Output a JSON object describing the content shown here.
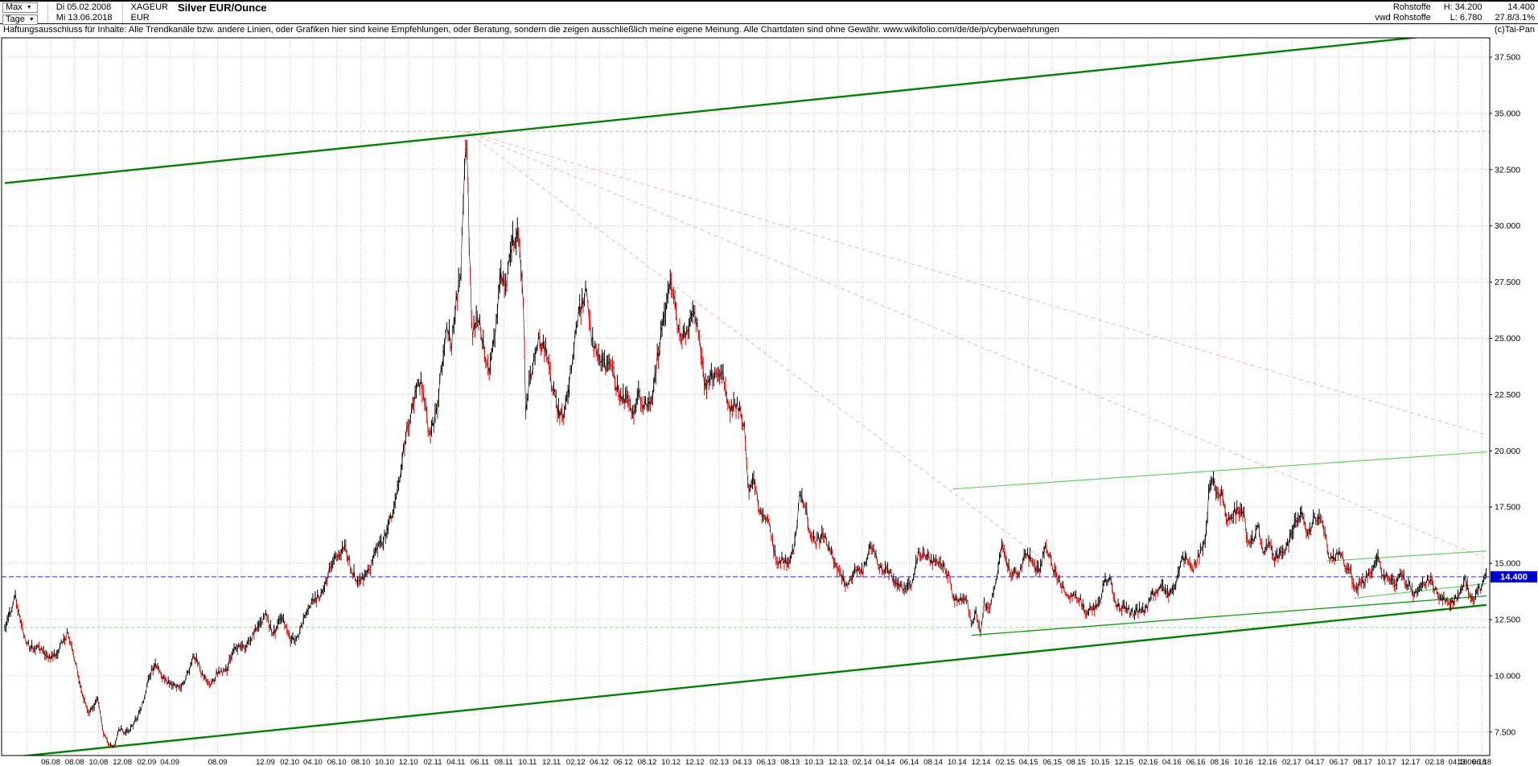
{
  "header": {
    "range_label": "Max",
    "range_arrow": "▼",
    "period_label": "Tage",
    "period_arrow": "▼",
    "start_date": "Di 05.02.2008",
    "end_date": "Mi 13.06.2018",
    "symbol": "XAGEUR",
    "currency": "EUR",
    "title": "Silver EUR/Ounce",
    "category": "Rohstoffe",
    "source": "vwd Rohstoffe",
    "high": "H: 34.200",
    "low": "L: 6.780",
    "last": "14.400",
    "change": "27.8/3.1%",
    "copyright": "(c)Tai-Pan"
  },
  "disclaimer": "Haftungsausschluss für Inhalte: Alle Trendkanäle bzw. andere Linien, oder Grafiken hier sind keine Empfehlungen, oder Beratung, sondern die zeigen ausschließlich meine eigene Meinung. Alle Chartdaten sind ohne Gewähr.  www.wikifolio.com/de/de/p/cyberwaehrungen",
  "chart_data": {
    "type": "candlestick",
    "title": "Silver EUR/Ounce",
    "instrument": "XAGEUR",
    "currency": "EUR",
    "x_start": "2008-02-05",
    "x_end": "2018-06-13",
    "high": 34.2,
    "low": 6.78,
    "last": 14.4,
    "last_label": "14.400",
    "ylim": [
      6.45,
      38.3
    ],
    "grid": true,
    "y_ticks": [
      [
        37.5,
        "37.500"
      ],
      [
        35,
        "35.000"
      ],
      [
        32.5,
        "32.500"
      ],
      [
        30,
        "30.000"
      ],
      [
        27.5,
        "27.500"
      ],
      [
        25,
        "25.000"
      ],
      [
        22.5,
        "22.500"
      ],
      [
        20,
        "20.000"
      ],
      [
        17.5,
        "17.500"
      ],
      [
        15,
        "15.000"
      ],
      [
        12.5,
        "12.500"
      ],
      [
        10,
        "10.000"
      ],
      [
        7.5,
        "7.500"
      ]
    ],
    "x_ticks": [
      "06.08",
      "08.08",
      "10.08",
      "12.08",
      "02.09",
      "04.09",
      "08.09",
      "12.09",
      "02.10",
      "04.10",
      "06.10",
      "08.10",
      "10.10",
      "12.10",
      "02.11",
      "04.11",
      "06.11",
      "08.11",
      "10.11",
      "12.11",
      "02.12",
      "04.12",
      "06.12",
      "08.12",
      "10.12",
      "12.12",
      "02.13",
      "04.13",
      "06.13",
      "08.13",
      "10.13",
      "12.13",
      "02.14",
      "04.14",
      "06.14",
      "08.14",
      "10.14",
      "12.14",
      "02.15",
      "04.15",
      "06.15",
      "08.15",
      "10.15",
      "12.15",
      "02.16",
      "04.16",
      "06.16",
      "08.16",
      "10.16",
      "12.16",
      "02.17",
      "04.17",
      "06.17",
      "08.17",
      "10.17",
      "12.17",
      "02.18",
      "04.18",
      "06.18",
      "13.06.18"
    ],
    "ref_lines": [
      {
        "name": "high-reference-line",
        "value": 34.2,
        "color": "#ff9c9c",
        "dash": "4 3"
      },
      {
        "name": "support-reference-line",
        "value": 12.15,
        "color": "#8ae08a",
        "dash": "4 3"
      },
      {
        "name": "last-price-line",
        "value": 14.4,
        "color": "#2a2ad0",
        "dash": "6 3"
      }
    ],
    "trend_lines": [
      {
        "name": "upper-channel-line",
        "from": [
          "2008-02-05",
          31.9
        ],
        "to": [
          "2018-06-13",
          38.7
        ],
        "color": "#008000",
        "width": 2.4
      },
      {
        "name": "lower-channel-line",
        "from": [
          "2008-02-05",
          6.35
        ],
        "to": [
          "2018-06-13",
          13.15
        ],
        "color": "#008000",
        "width": 2.4
      },
      {
        "name": "support-line-2014",
        "from": [
          "2014-11-07",
          11.8
        ],
        "to": [
          "2018-06-13",
          13.55
        ],
        "color": "#119911",
        "width": 1.3
      },
      {
        "name": "mid-resistance-line",
        "from": [
          "2014-09-20",
          18.3
        ],
        "to": [
          "2018-06-13",
          19.95
        ],
        "color": "#66cc66",
        "width": 1.2
      },
      {
        "name": "recent-upper-line",
        "from": [
          "2017-05-01",
          15.1
        ],
        "to": [
          "2018-06-13",
          15.55
        ],
        "color": "#66cc66",
        "width": 1.2
      },
      {
        "name": "recent-lower-line",
        "from": [
          "2017-07-10",
          13.45
        ],
        "to": [
          "2018-06-13",
          14.1
        ],
        "color": "#66cc66",
        "width": 1.2
      }
    ],
    "fan_lines": [
      {
        "name": "fan-line-1",
        "from": [
          "2011-04-28",
          34.2
        ],
        "to": [
          "2018-06-13",
          20.7
        ],
        "color": "#ffb0b0",
        "dash": "5 4"
      },
      {
        "name": "fan-line-2",
        "from": [
          "2011-04-28",
          34.2
        ],
        "to": [
          "2018-06-13",
          15.2
        ],
        "color": "#ffb0b0",
        "dash": "5 4"
      },
      {
        "name": "fan-line-3",
        "from": [
          "2011-04-28",
          34.2
        ],
        "to": [
          "2015-07-15",
          14.3
        ],
        "color": "#ffb0b0",
        "dash": "5 4"
      }
    ],
    "series_close": [
      [
        "2008-02-05",
        12.1
      ],
      [
        "2008-02-18",
        12.6
      ],
      [
        "2008-03-03",
        13.5
      ],
      [
        "2008-03-17",
        12.4
      ],
      [
        "2008-04-01",
        11.5
      ],
      [
        "2008-04-21",
        11.2
      ],
      [
        "2008-05-12",
        11.0
      ],
      [
        "2008-06-02",
        10.9
      ],
      [
        "2008-06-23",
        11.2
      ],
      [
        "2008-07-14",
        11.8
      ],
      [
        "2008-08-04",
        10.6
      ],
      [
        "2008-08-18",
        9.4
      ],
      [
        "2008-09-08",
        8.3
      ],
      [
        "2008-09-29",
        8.9
      ],
      [
        "2008-10-13",
        7.6
      ],
      [
        "2008-10-27",
        6.95
      ],
      [
        "2008-11-10",
        6.9
      ],
      [
        "2008-11-24",
        7.6
      ],
      [
        "2008-12-08",
        7.4
      ],
      [
        "2008-12-29",
        7.9
      ],
      [
        "2009-01-19",
        8.6
      ],
      [
        "2009-02-09",
        9.9
      ],
      [
        "2009-02-23",
        10.6
      ],
      [
        "2009-03-16",
        10.0
      ],
      [
        "2009-04-06",
        9.5
      ],
      [
        "2009-04-27",
        9.4
      ],
      [
        "2009-05-18",
        10.2
      ],
      [
        "2009-06-01",
        11.0
      ],
      [
        "2009-06-22",
        10.0
      ],
      [
        "2009-07-13",
        9.6
      ],
      [
        "2009-08-03",
        10.3
      ],
      [
        "2009-08-24",
        10.2
      ],
      [
        "2009-09-14",
        11.2
      ],
      [
        "2009-10-05",
        11.3
      ],
      [
        "2009-10-26",
        11.7
      ],
      [
        "2009-11-16",
        12.1
      ],
      [
        "2009-12-01",
        12.8
      ],
      [
        "2009-12-21",
        11.9
      ],
      [
        "2010-01-11",
        12.5
      ],
      [
        "2010-02-01",
        11.6
      ],
      [
        "2010-02-22",
        11.9
      ],
      [
        "2010-03-15",
        12.8
      ],
      [
        "2010-04-05",
        13.2
      ],
      [
        "2010-04-26",
        13.8
      ],
      [
        "2010-05-17",
        15.0
      ],
      [
        "2010-06-07",
        15.3
      ],
      [
        "2010-06-21",
        15.7
      ],
      [
        "2010-07-12",
        14.7
      ],
      [
        "2010-08-02",
        14.2
      ],
      [
        "2010-08-23",
        14.6
      ],
      [
        "2010-09-13",
        15.9
      ],
      [
        "2010-10-04",
        16.3
      ],
      [
        "2010-10-25",
        17.2
      ],
      [
        "2010-11-08",
        18.8
      ],
      [
        "2010-11-29",
        21.2
      ],
      [
        "2010-12-20",
        22.7
      ],
      [
        "2011-01-03",
        22.9
      ],
      [
        "2011-01-24",
        20.6
      ],
      [
        "2011-02-14",
        22.3
      ],
      [
        "2011-03-07",
        25.3
      ],
      [
        "2011-03-21",
        24.6
      ],
      [
        "2011-04-04",
        26.9
      ],
      [
        "2011-04-14",
        28.3
      ],
      [
        "2011-04-25",
        33.5
      ],
      [
        "2011-04-29",
        33.9
      ],
      [
        "2011-05-04",
        30.0
      ],
      [
        "2011-05-12",
        24.8
      ],
      [
        "2011-05-26",
        25.8
      ],
      [
        "2011-06-13",
        24.5
      ],
      [
        "2011-06-27",
        23.8
      ],
      [
        "2011-07-11",
        25.4
      ],
      [
        "2011-07-25",
        27.6
      ],
      [
        "2011-08-08",
        27.2
      ],
      [
        "2011-08-22",
        29.4
      ],
      [
        "2011-09-06",
        29.9
      ],
      [
        "2011-09-19",
        27.5
      ],
      [
        "2011-09-26",
        21.9
      ],
      [
        "2011-10-10",
        23.3
      ],
      [
        "2011-10-28",
        25.0
      ],
      [
        "2011-11-14",
        24.7
      ],
      [
        "2011-11-28",
        23.4
      ],
      [
        "2011-12-14",
        21.8
      ],
      [
        "2011-12-29",
        21.3
      ],
      [
        "2012-01-16",
        23.2
      ],
      [
        "2012-02-01",
        25.7
      ],
      [
        "2012-02-28",
        26.9
      ],
      [
        "2012-03-14",
        24.7
      ],
      [
        "2012-03-28",
        24.6
      ],
      [
        "2012-04-16",
        23.9
      ],
      [
        "2012-05-07",
        23.2
      ],
      [
        "2012-05-21",
        22.3
      ],
      [
        "2012-06-11",
        22.6
      ],
      [
        "2012-06-25",
        21.8
      ],
      [
        "2012-07-09",
        22.3
      ],
      [
        "2012-07-23",
        21.9
      ],
      [
        "2012-08-13",
        22.4
      ],
      [
        "2012-08-27",
        24.3
      ],
      [
        "2012-09-10",
        25.6
      ],
      [
        "2012-10-01",
        27.2
      ],
      [
        "2012-10-15",
        26.0
      ],
      [
        "2012-10-29",
        25.0
      ],
      [
        "2012-11-12",
        25.6
      ],
      [
        "2012-11-26",
        26.1
      ],
      [
        "2012-12-10",
        25.3
      ],
      [
        "2012-12-27",
        23.0
      ],
      [
        "2013-01-14",
        23.6
      ],
      [
        "2013-01-28",
        23.4
      ],
      [
        "2013-02-11",
        23.0
      ],
      [
        "2013-02-25",
        21.7
      ],
      [
        "2013-03-11",
        22.1
      ],
      [
        "2013-03-25",
        22.1
      ],
      [
        "2013-04-08",
        20.8
      ],
      [
        "2013-04-16",
        17.9
      ],
      [
        "2013-04-29",
        18.6
      ],
      [
        "2013-05-13",
        17.6
      ],
      [
        "2013-05-28",
        17.3
      ],
      [
        "2013-06-10",
        16.6
      ],
      [
        "2013-06-27",
        14.9
      ],
      [
        "2013-07-15",
        15.1
      ],
      [
        "2013-07-29",
        15.0
      ],
      [
        "2013-08-12",
        15.9
      ],
      [
        "2013-08-26",
        18.0
      ],
      [
        "2013-09-09",
        17.3
      ],
      [
        "2013-09-23",
        16.2
      ],
      [
        "2013-10-07",
        16.1
      ],
      [
        "2013-10-28",
        16.4
      ],
      [
        "2013-11-11",
        15.4
      ],
      [
        "2013-11-25",
        14.9
      ],
      [
        "2013-12-09",
        14.5
      ],
      [
        "2013-12-30",
        14.1
      ],
      [
        "2014-01-13",
        14.8
      ],
      [
        "2014-02-03",
        14.5
      ],
      [
        "2014-02-24",
        15.9
      ],
      [
        "2014-03-10",
        15.3
      ],
      [
        "2014-03-24",
        14.5
      ],
      [
        "2014-04-07",
        14.5
      ],
      [
        "2014-04-28",
        14.1
      ],
      [
        "2014-05-12",
        14.1
      ],
      [
        "2014-05-26",
        13.9
      ],
      [
        "2014-06-09",
        14.0
      ],
      [
        "2014-06-23",
        15.3
      ],
      [
        "2014-07-07",
        15.5
      ],
      [
        "2014-07-28",
        15.2
      ],
      [
        "2014-08-11",
        14.9
      ],
      [
        "2014-08-25",
        14.8
      ],
      [
        "2014-09-08",
        14.5
      ],
      [
        "2014-09-22",
        13.6
      ],
      [
        "2014-10-06",
        13.5
      ],
      [
        "2014-10-27",
        13.2
      ],
      [
        "2014-11-07",
        12.1
      ],
      [
        "2014-11-17",
        12.9
      ],
      [
        "2014-12-01",
        11.95
      ],
      [
        "2014-12-08",
        13.4
      ],
      [
        "2014-12-22",
        12.9
      ],
      [
        "2015-01-12",
        14.4
      ],
      [
        "2015-01-22",
        15.7
      ],
      [
        "2015-02-09",
        14.9
      ],
      [
        "2015-02-23",
        14.6
      ],
      [
        "2015-03-09",
        14.5
      ],
      [
        "2015-03-23",
        15.3
      ],
      [
        "2015-04-13",
        15.1
      ],
      [
        "2015-04-27",
        14.8
      ],
      [
        "2015-05-14",
        15.6
      ],
      [
        "2015-05-25",
        15.2
      ],
      [
        "2015-06-08",
        14.4
      ],
      [
        "2015-06-29",
        14.0
      ],
      [
        "2015-07-20",
        13.5
      ],
      [
        "2015-08-10",
        13.3
      ],
      [
        "2015-08-24",
        12.9
      ],
      [
        "2015-09-14",
        13.1
      ],
      [
        "2015-09-28",
        13.2
      ],
      [
        "2015-10-12",
        14.1
      ],
      [
        "2015-10-26",
        14.3
      ],
      [
        "2015-11-09",
        13.3
      ],
      [
        "2015-11-30",
        13.1
      ],
      [
        "2015-12-14",
        12.8
      ],
      [
        "2015-12-28",
        12.7
      ],
      [
        "2016-01-11",
        12.9
      ],
      [
        "2016-01-25",
        13.0
      ],
      [
        "2016-02-08",
        13.6
      ],
      [
        "2016-02-29",
        13.7
      ],
      [
        "2016-03-14",
        13.9
      ],
      [
        "2016-03-28",
        13.6
      ],
      [
        "2016-04-11",
        14.3
      ],
      [
        "2016-04-25",
        15.2
      ],
      [
        "2016-05-09",
        15.1
      ],
      [
        "2016-05-23",
        14.6
      ],
      [
        "2016-06-06",
        15.3
      ],
      [
        "2016-06-27",
        16.4
      ],
      [
        "2016-07-04",
        18.0
      ],
      [
        "2016-07-11",
        18.7
      ],
      [
        "2016-07-25",
        17.9
      ],
      [
        "2016-08-08",
        18.0
      ],
      [
        "2016-08-22",
        17.0
      ],
      [
        "2016-09-06",
        17.4
      ],
      [
        "2016-09-19",
        17.2
      ],
      [
        "2016-10-03",
        16.9
      ],
      [
        "2016-10-10",
        15.9
      ],
      [
        "2016-10-24",
        16.2
      ],
      [
        "2016-11-07",
        16.7
      ],
      [
        "2016-11-21",
        15.5
      ],
      [
        "2016-12-05",
        15.8
      ],
      [
        "2016-12-19",
        15.2
      ],
      [
        "2017-01-09",
        15.6
      ],
      [
        "2017-01-23",
        15.9
      ],
      [
        "2017-02-06",
        16.6
      ],
      [
        "2017-02-20",
        16.8
      ],
      [
        "2017-02-27",
        17.2
      ],
      [
        "2017-03-13",
        16.3
      ],
      [
        "2017-03-27",
        17.0
      ],
      [
        "2017-04-10",
        17.2
      ],
      [
        "2017-04-24",
        16.3
      ],
      [
        "2017-05-08",
        15.2
      ],
      [
        "2017-05-22",
        15.4
      ],
      [
        "2017-06-05",
        15.7
      ],
      [
        "2017-06-19",
        14.8
      ],
      [
        "2017-07-03",
        14.4
      ],
      [
        "2017-07-10",
        13.6
      ],
      [
        "2017-07-24",
        14.1
      ],
      [
        "2017-08-07",
        14.4
      ],
      [
        "2017-08-28",
        14.7
      ],
      [
        "2017-09-08",
        15.1
      ],
      [
        "2017-09-25",
        14.3
      ],
      [
        "2017-10-09",
        14.5
      ],
      [
        "2017-10-23",
        14.2
      ],
      [
        "2017-11-06",
        14.6
      ],
      [
        "2017-11-20",
        14.0
      ],
      [
        "2017-12-11",
        13.6
      ],
      [
        "2017-12-28",
        14.1
      ],
      [
        "2018-01-15",
        14.3
      ],
      [
        "2018-01-29",
        13.9
      ],
      [
        "2018-02-12",
        13.4
      ],
      [
        "2018-02-26",
        13.5
      ],
      [
        "2018-03-12",
        13.3
      ],
      [
        "2018-03-26",
        13.4
      ],
      [
        "2018-04-09",
        13.6
      ],
      [
        "2018-04-19",
        14.1
      ],
      [
        "2018-04-30",
        13.7
      ],
      [
        "2018-05-14",
        13.6
      ],
      [
        "2018-05-29",
        14.0
      ],
      [
        "2018-06-08",
        14.2
      ],
      [
        "2018-06-13",
        14.4
      ]
    ],
    "colors": {
      "up": "#000000",
      "down": "#d40000",
      "grid": "#c0c0c0",
      "border": "#000000",
      "tag_bg": "#0000cc",
      "tag_fg": "#ffffff"
    }
  }
}
